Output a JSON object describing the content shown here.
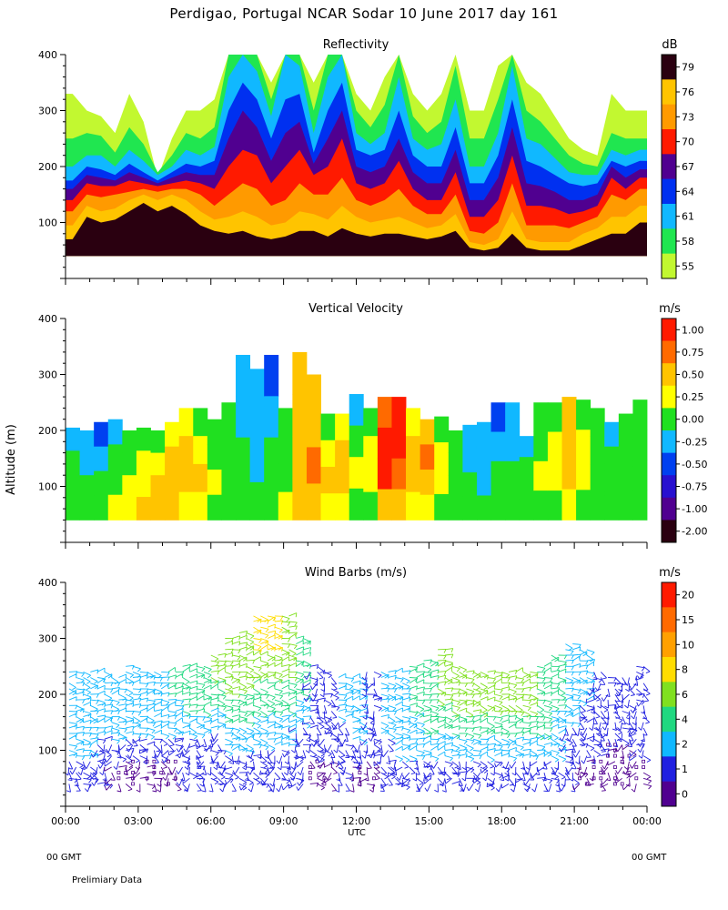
{
  "header": {
    "title": "Perdigao, Portugal  NCAR Sodar  10 June 2017  day 161"
  },
  "footer": {
    "left_gmt": "00 GMT",
    "right_gmt": "00 GMT",
    "note": "Prelimiary Data"
  },
  "axes": {
    "shared_ylabel": "Altitude (m)",
    "xlabel": "UTC"
  },
  "chart_data": [
    {
      "type": "heatmap",
      "title": "Reflectivity",
      "unit": "dB",
      "ylim": [
        0,
        400
      ],
      "yticks": [
        "100",
        "200",
        "300",
        "400"
      ],
      "xticks": [],
      "colorbar": {
        "labels": [
          "79",
          "76",
          "73",
          "70",
          "67",
          "64",
          "61",
          "58",
          "55"
        ],
        "colors": [
          "#2a0010",
          "#ffc400",
          "#ff9a00",
          "#ff1a00",
          "#500090",
          "#0030f0",
          "#10b8ff",
          "#20e650",
          "#c2f830"
        ]
      },
      "field": {
        "layer_tops_m": [
          [
            330,
            250,
            200,
            175,
            160,
            140,
            120,
            95,
            70
          ],
          [
            300,
            260,
            220,
            200,
            185,
            170,
            150,
            130,
            110
          ],
          [
            290,
            255,
            220,
            195,
            180,
            165,
            145,
            120,
            100
          ],
          [
            260,
            225,
            200,
            185,
            175,
            165,
            150,
            125,
            105
          ],
          [
            330,
            270,
            230,
            205,
            190,
            175,
            155,
            140,
            120
          ],
          [
            280,
            240,
            210,
            190,
            180,
            170,
            160,
            150,
            135
          ],
          [
            180,
            190,
            185,
            175,
            170,
            165,
            155,
            140,
            120
          ],
          [
            250,
            220,
            200,
            190,
            180,
            170,
            160,
            150,
            130
          ],
          [
            300,
            260,
            230,
            205,
            190,
            175,
            160,
            140,
            115
          ],
          [
            300,
            250,
            220,
            200,
            185,
            170,
            150,
            120,
            95
          ],
          [
            320,
            270,
            235,
            210,
            185,
            160,
            130,
            105,
            85
          ],
          [
            400,
            400,
            360,
            300,
            250,
            200,
            150,
            110,
            80
          ],
          [
            400,
            400,
            400,
            350,
            300,
            230,
            170,
            120,
            85
          ],
          [
            400,
            400,
            370,
            320,
            270,
            220,
            160,
            110,
            75
          ],
          [
            350,
            320,
            290,
            250,
            210,
            170,
            130,
            95,
            70
          ],
          [
            400,
            400,
            400,
            320,
            260,
            200,
            140,
            100,
            75
          ],
          [
            400,
            400,
            380,
            330,
            280,
            230,
            170,
            120,
            85
          ],
          [
            350,
            300,
            260,
            225,
            205,
            185,
            150,
            115,
            85
          ],
          [
            400,
            400,
            360,
            300,
            250,
            200,
            150,
            105,
            75
          ],
          [
            400,
            400,
            400,
            350,
            300,
            250,
            180,
            130,
            90
          ],
          [
            330,
            300,
            260,
            230,
            200,
            170,
            140,
            110,
            80
          ],
          [
            300,
            270,
            240,
            220,
            190,
            160,
            130,
            100,
            75
          ],
          [
            360,
            310,
            260,
            230,
            200,
            170,
            140,
            105,
            80
          ],
          [
            400,
            400,
            360,
            300,
            250,
            210,
            160,
            110,
            80
          ],
          [
            330,
            290,
            250,
            220,
            190,
            160,
            130,
            100,
            75
          ],
          [
            300,
            260,
            230,
            200,
            170,
            140,
            115,
            90,
            70
          ],
          [
            330,
            280,
            240,
            200,
            170,
            140,
            115,
            95,
            75
          ],
          [
            400,
            380,
            320,
            270,
            230,
            190,
            150,
            115,
            85
          ],
          [
            300,
            250,
            200,
            170,
            140,
            110,
            85,
            65,
            55
          ],
          [
            300,
            250,
            200,
            170,
            140,
            110,
            80,
            60,
            50
          ],
          [
            380,
            320,
            260,
            220,
            180,
            140,
            100,
            70,
            55
          ],
          [
            400,
            400,
            380,
            320,
            270,
            220,
            170,
            120,
            80
          ],
          [
            350,
            300,
            250,
            210,
            170,
            130,
            95,
            70,
            55
          ],
          [
            330,
            280,
            240,
            200,
            165,
            130,
            95,
            65,
            50
          ],
          [
            290,
            250,
            215,
            185,
            155,
            125,
            95,
            65,
            50
          ],
          [
            250,
            220,
            190,
            170,
            140,
            115,
            90,
            65,
            50
          ],
          [
            230,
            205,
            185,
            165,
            140,
            120,
            100,
            80,
            60
          ],
          [
            220,
            200,
            185,
            170,
            150,
            130,
            110,
            90,
            70
          ],
          [
            330,
            260,
            230,
            210,
            200,
            180,
            150,
            110,
            80
          ],
          [
            300,
            250,
            220,
            200,
            180,
            160,
            140,
            110,
            80
          ],
          [
            300,
            250,
            230,
            210,
            195,
            180,
            160,
            130,
            100
          ]
        ]
      }
    },
    {
      "type": "heatmap",
      "title": "Vertical Velocity",
      "unit": "m/s",
      "ylim": [
        0,
        400
      ],
      "yticks": [
        "100",
        "200",
        "300",
        "400"
      ],
      "xticks": [],
      "colorbar": {
        "labels": [
          "1.00",
          "0.75",
          "0.50",
          "0.25",
          "0.00",
          "-0.25",
          "-0.50",
          "-0.75",
          "-1.00",
          "-2.00"
        ],
        "colors": [
          "#ff1a00",
          "#ff6a00",
          "#ffc400",
          "#ffff00",
          "#20e020",
          "#10b8ff",
          "#0040f0",
          "#2810d0",
          "#500090",
          "#2a0010"
        ]
      },
      "field": {
        "top_m": [
          205,
          200,
          215,
          220,
          200,
          205,
          200,
          215,
          240,
          240,
          220,
          250,
          335,
          310,
          335,
          240,
          340,
          300,
          230,
          230,
          265,
          240,
          260,
          260,
          240,
          220,
          225,
          200,
          210,
          215,
          250,
          250,
          190,
          250,
          250,
          260,
          255,
          240,
          215,
          230,
          255
        ],
        "class_columns": [
          [
            5,
            5,
            6,
            5,
            4,
            4,
            4,
            3,
            3,
            4,
            4,
            4,
            5,
            5,
            6,
            4,
            2,
            2,
            4,
            3,
            5,
            4,
            1,
            0,
            3,
            2,
            4,
            4,
            5,
            5,
            6,
            5,
            5,
            4,
            4,
            2,
            4,
            4,
            5,
            4,
            4
          ],
          [
            4,
            5,
            5,
            4,
            4,
            3,
            3,
            2,
            2,
            3,
            4,
            4,
            5,
            5,
            5,
            4,
            2,
            2,
            3,
            2,
            4,
            3,
            0,
            0,
            2,
            1,
            3,
            4,
            5,
            5,
            5,
            5,
            4,
            4,
            3,
            2,
            3,
            4,
            4,
            4,
            4
          ],
          [
            4,
            4,
            4,
            4,
            3,
            3,
            2,
            2,
            2,
            2,
            3,
            4,
            4,
            5,
            4,
            4,
            2,
            1,
            2,
            2,
            3,
            3,
            0,
            1,
            2,
            2,
            3,
            4,
            4,
            5,
            4,
            4,
            4,
            3,
            3,
            2,
            3,
            4,
            4,
            4,
            4
          ],
          [
            4,
            4,
            4,
            3,
            3,
            2,
            2,
            2,
            3,
            3,
            4,
            4,
            4,
            4,
            4,
            3,
            2,
            2,
            3,
            3,
            4,
            4,
            2,
            2,
            3,
            3,
            4,
            4,
            4,
            4,
            4,
            4,
            4,
            4,
            4,
            3,
            4,
            4,
            4,
            4,
            4
          ]
        ]
      }
    },
    {
      "type": "scatter",
      "title": "Wind Barbs (m/s)",
      "unit": "m/s",
      "ylim": [
        0,
        400
      ],
      "yticks": [
        "100",
        "200",
        "300",
        "400"
      ],
      "xlabel": "UTC",
      "xticks": [
        "00:00",
        "03:00",
        "06:00",
        "09:00",
        "12:00",
        "15:00",
        "18:00",
        "21:00",
        "00:00"
      ],
      "colorbar": {
        "labels": [
          "20",
          "15",
          "10",
          "8",
          "6",
          "4",
          "2",
          "1",
          "0"
        ],
        "colors": [
          "#ff1a00",
          "#ff6a00",
          "#ffa000",
          "#ffdc00",
          "#80e020",
          "#20d880",
          "#10b8ff",
          "#2020e0",
          "#500090"
        ]
      },
      "field": {
        "top_m": [
          240,
          240,
          240,
          230,
          250,
          240,
          240,
          240,
          250,
          250,
          270,
          300,
          310,
          340,
          340,
          340,
          300,
          250,
          240,
          230,
          230,
          240,
          240,
          240,
          250,
          260,
          280,
          250,
          240,
          240,
          240,
          240,
          240,
          250,
          270,
          290,
          280,
          240,
          230,
          230,
          250
        ],
        "speed_profiles": [
          [
            2,
            2,
            2,
            2,
            1
          ],
          [
            2,
            2,
            2,
            2,
            1
          ],
          [
            2,
            2,
            2,
            1,
            1
          ],
          [
            2,
            2,
            2,
            1,
            0
          ],
          [
            2,
            2,
            2,
            1,
            0
          ],
          [
            2,
            2,
            2,
            1,
            0
          ],
          [
            2,
            2,
            2,
            1,
            0
          ],
          [
            3,
            2,
            2,
            1,
            0
          ],
          [
            3,
            3,
            2,
            1,
            1
          ],
          [
            3,
            3,
            2,
            1,
            1
          ],
          [
            4,
            3,
            2,
            1,
            1
          ],
          [
            4,
            4,
            3,
            2,
            1
          ],
          [
            4,
            4,
            3,
            2,
            1
          ],
          [
            5,
            4,
            3,
            2,
            1
          ],
          [
            5,
            4,
            3,
            2,
            1
          ],
          [
            4,
            4,
            3,
            2,
            1
          ],
          [
            3,
            3,
            2,
            1,
            1
          ],
          [
            1,
            1,
            1,
            1,
            0
          ],
          [
            1,
            1,
            1,
            1,
            0
          ],
          [
            2,
            2,
            1,
            1,
            1
          ],
          [
            2,
            2,
            2,
            1,
            0
          ],
          [
            1,
            1,
            1,
            1,
            0
          ],
          [
            2,
            2,
            2,
            1,
            1
          ],
          [
            2,
            2,
            2,
            2,
            1
          ],
          [
            3,
            3,
            2,
            2,
            1
          ],
          [
            3,
            3,
            3,
            2,
            1
          ],
          [
            4,
            4,
            3,
            2,
            1
          ],
          [
            4,
            4,
            3,
            2,
            1
          ],
          [
            4,
            4,
            3,
            2,
            1
          ],
          [
            4,
            4,
            3,
            2,
            1
          ],
          [
            4,
            4,
            3,
            2,
            1
          ],
          [
            4,
            4,
            3,
            2,
            1
          ],
          [
            4,
            4,
            3,
            2,
            1
          ],
          [
            3,
            3,
            3,
            2,
            1
          ],
          [
            3,
            3,
            2,
            2,
            1
          ],
          [
            2,
            2,
            2,
            1,
            1
          ],
          [
            2,
            2,
            1,
            1,
            0
          ],
          [
            1,
            1,
            1,
            1,
            0
          ],
          [
            1,
            1,
            1,
            0,
            0
          ],
          [
            1,
            1,
            1,
            0,
            0
          ],
          [
            1,
            1,
            1,
            1,
            0
          ]
        ]
      }
    }
  ]
}
